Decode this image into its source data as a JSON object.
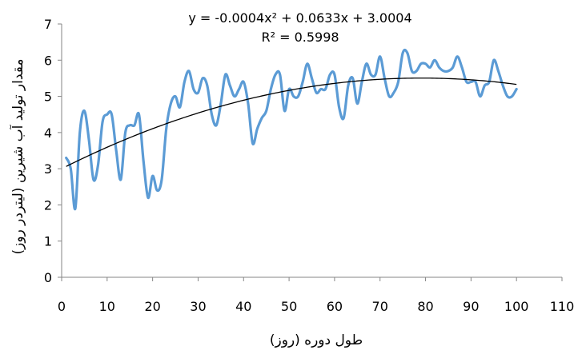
{
  "chart_data": {
    "type": "line",
    "xlabel": "طول دوره (روز)",
    "ylabel": "مقدار تولید آب شیرین (لیتردر روز)",
    "xlim": [
      0,
      110
    ],
    "ylim": [
      0,
      7
    ],
    "xticks": [
      0,
      10,
      20,
      30,
      40,
      50,
      60,
      70,
      80,
      90,
      100,
      110
    ],
    "yticks": [
      0,
      1,
      2,
      3,
      4,
      5,
      6,
      7
    ],
    "xtick_labels": [
      "0",
      "10",
      "20",
      "30",
      "40",
      "50",
      "60",
      "70",
      "80",
      "90",
      "100",
      "110"
    ],
    "ytick_labels": [
      "0",
      "1",
      "2",
      "3",
      "4",
      "5",
      "6",
      "7"
    ],
    "grid": false,
    "legend": "none",
    "series": [
      {
        "color": "#5b9bd5",
        "x": [
          1,
          2,
          3,
          4,
          5,
          6,
          7,
          8,
          9,
          10,
          11,
          12,
          13,
          14,
          15,
          16,
          17,
          18,
          19,
          20,
          21,
          22,
          23,
          24,
          25,
          26,
          27,
          28,
          29,
          30,
          31,
          32,
          33,
          34,
          35,
          36,
          37,
          38,
          39,
          40,
          41,
          42,
          43,
          44,
          45,
          46,
          47,
          48,
          49,
          50,
          51,
          52,
          53,
          54,
          55,
          56,
          57,
          58,
          59,
          60,
          61,
          62,
          63,
          64,
          65,
          66,
          67,
          68,
          69,
          70,
          71,
          72,
          73,
          74,
          75,
          76,
          77,
          78,
          79,
          80,
          81,
          82,
          83,
          84,
          85,
          86,
          87,
          88,
          89,
          90,
          91,
          92,
          93,
          94,
          95,
          96,
          97,
          98,
          99,
          100
        ],
        "y": [
          3.3,
          3.0,
          1.9,
          4.0,
          4.6,
          3.8,
          2.7,
          3.1,
          4.3,
          4.5,
          4.5,
          3.5,
          2.7,
          4.0,
          4.2,
          4.2,
          4.5,
          3.2,
          2.2,
          2.8,
          2.4,
          2.7,
          4.1,
          4.8,
          5.0,
          4.7,
          5.4,
          5.7,
          5.2,
          5.1,
          5.5,
          5.3,
          4.5,
          4.2,
          4.8,
          5.6,
          5.3,
          5.0,
          5.2,
          5.4,
          4.8,
          3.7,
          4.1,
          4.4,
          4.6,
          5.2,
          5.6,
          5.6,
          4.6,
          5.2,
          5.0,
          5.0,
          5.4,
          5.9,
          5.5,
          5.1,
          5.2,
          5.2,
          5.6,
          5.6,
          4.7,
          4.4,
          5.3,
          5.5,
          4.8,
          5.4,
          5.9,
          5.6,
          5.6,
          6.1,
          5.5,
          5.0,
          5.1,
          5.4,
          6.2,
          6.2,
          5.7,
          5.7,
          5.9,
          5.9,
          5.8,
          6.0,
          5.8,
          5.7,
          5.7,
          5.8,
          6.1,
          5.8,
          5.4,
          5.4,
          5.4,
          5.0,
          5.3,
          5.4,
          6.0,
          5.7,
          5.3,
          5.0,
          5.0,
          5.2
        ]
      }
    ],
    "trendline": {
      "type": "polynomial",
      "coefficients": [
        -0.0004,
        0.0633,
        3.0004
      ],
      "x_range": [
        1,
        100
      ],
      "color": "#000000"
    },
    "annotations": {
      "equation": "y = -0.0004x² + 0.0633x + 3.0004",
      "r_squared": "R² = 0.5998"
    }
  }
}
